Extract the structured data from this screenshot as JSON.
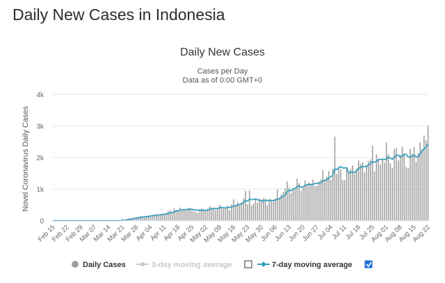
{
  "page": {
    "heading": "Daily New Cases in Indonesia"
  },
  "chart_data": {
    "type": "bar",
    "title": "Daily New Cases",
    "subtitle_line1": "Cases per Day",
    "subtitle_line2": "Data as of 0:00 GMT+0",
    "ylabel": "Novel Coronavirus Daily Cases",
    "xlabel": "",
    "ylim": [
      0,
      4000
    ],
    "y_ticks": [
      0,
      1000,
      2000,
      3000,
      4000
    ],
    "y_tick_labels": [
      "0",
      "1k",
      "2k",
      "3k",
      "4k"
    ],
    "start_date": "2020-02-15",
    "x_tick_labels": [
      "Feb 15",
      "Feb 22",
      "Feb 29",
      "Mar 07",
      "Mar 14",
      "Mar 21",
      "Mar 28",
      "Apr 04",
      "Apr 11",
      "Apr 18",
      "Apr 25",
      "May 02",
      "May 09",
      "May 16",
      "May 23",
      "May 30",
      "Jun 06",
      "Jun 13",
      "Jun 20",
      "Jun 27",
      "Jul 04",
      "Jul 11",
      "Jul 18",
      "Jul 25",
      "Aug 01",
      "Aug 08",
      "Aug 15",
      "Aug 22"
    ],
    "grid": true,
    "legend_position": "bottom",
    "colors": {
      "bars": "#9e9e9e",
      "moving_avg_7": "#3aa0c0",
      "moving_avg_3": "#c8c8c8",
      "grid": "#e6e6e6",
      "checkbox": "#1e6fd9"
    },
    "series": [
      {
        "name": "Daily Cases",
        "values": [
          0,
          0,
          0,
          0,
          0,
          0,
          0,
          0,
          0,
          0,
          0,
          0,
          0,
          0,
          0,
          0,
          0,
          0,
          2,
          0,
          0,
          0,
          0,
          0,
          0,
          0,
          0,
          0,
          0,
          0,
          0,
          0,
          0,
          0,
          0,
          60,
          20,
          55,
          70,
          70,
          80,
          100,
          110,
          120,
          140,
          140,
          130,
          150,
          150,
          170,
          180,
          190,
          200,
          190,
          190,
          220,
          220,
          250,
          300,
          330,
          260,
          380,
          340,
          330,
          410,
          330,
          340,
          320,
          390,
          410,
          320,
          300,
          280,
          240,
          360,
          390,
          360,
          330,
          370,
          450,
          410,
          400,
          330,
          410,
          500,
          410,
          390,
          380,
          480,
          330,
          520,
          670,
          500,
          580,
          490,
          570,
          700,
          940,
          520,
          950,
          480,
          530,
          680,
          560,
          690,
          620,
          710,
          700,
          480,
          690,
          620,
          600,
          700,
          980,
          720,
          830,
          900,
          1020,
          1240,
          1050,
          870,
          1040,
          1010,
          1330,
          1180,
          950,
          1040,
          1270,
          1140,
          1200,
          1160,
          1300,
          1090,
          1100,
          1240,
          1310,
          1600,
          1290,
          1390,
          1570,
          1290,
          1640,
          2660,
          1480,
          1700,
          1630,
          1280,
          1280,
          1680,
          1520,
          1640,
          1750,
          1490,
          1640,
          1900,
          1790,
          1850,
          1520,
          1760,
          1890,
          1940,
          2380,
          1560,
          2100,
          1920,
          1770,
          1940,
          1830,
          2480,
          2100,
          1810,
          1670,
          2270,
          2300,
          1900,
          2070,
          2340,
          2130,
          1700,
          1670,
          2270,
          2120,
          2330,
          1860,
          2130,
          2480,
          2270,
          2700,
          2540,
          3010
        ]
      },
      {
        "name": "3-day moving average",
        "enabled": false
      },
      {
        "name": "7-day moving average",
        "enabled": true
      }
    ]
  },
  "legend": {
    "daily_label": "Daily Cases",
    "ma3_label": "3-day moving average",
    "ma7_label": "7-day moving average",
    "ma3_checked": false,
    "ma7_checked": true
  }
}
